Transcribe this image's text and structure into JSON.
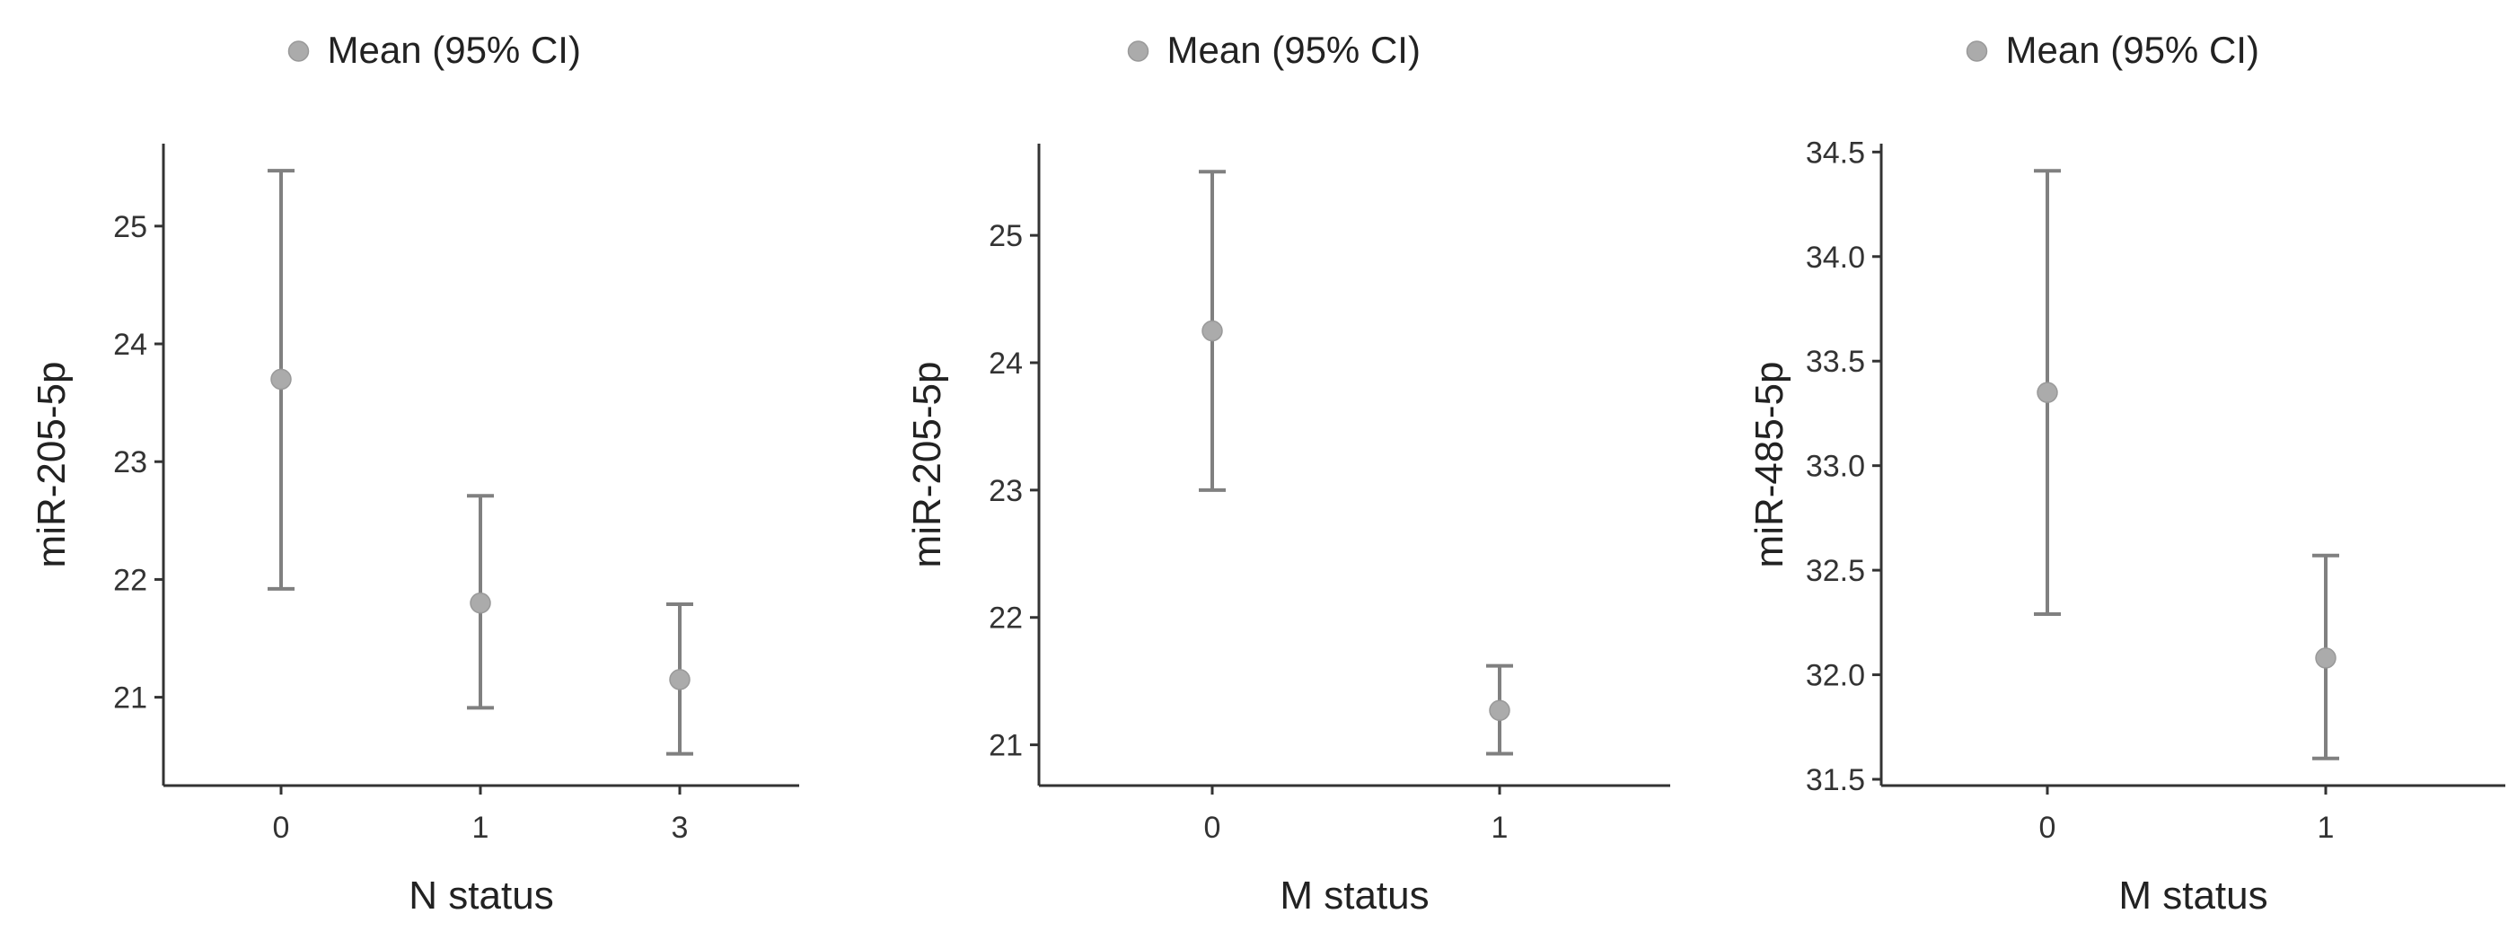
{
  "chart_data": [
    {
      "type": "errorbar",
      "legend": {
        "label": "Mean (95% CI)",
        "position": "top"
      },
      "xlabel": "N status",
      "ylabel": "miR-205-5p",
      "categories": [
        "0",
        "1",
        "3"
      ],
      "series": [
        {
          "points": [
            {
              "x": "0",
              "mean": 23.7,
              "lower": 21.92,
              "upper": 25.47
            },
            {
              "x": "1",
              "mean": 21.8,
              "lower": 20.91,
              "upper": 22.71
            },
            {
              "x": "3",
              "mean": 21.15,
              "lower": 20.52,
              "upper": 21.79
            }
          ]
        }
      ],
      "ylim": [
        20.25,
        25.7
      ],
      "yticks": [
        "21",
        "22",
        "23",
        "24",
        "25"
      ],
      "grid": false
    },
    {
      "type": "errorbar",
      "legend": {
        "label": "Mean (95% CI)",
        "position": "top"
      },
      "xlabel": "M status",
      "ylabel": "miR-205-5p",
      "categories": [
        "0",
        "1"
      ],
      "series": [
        {
          "points": [
            {
              "x": "0",
              "mean": 24.25,
              "lower": 23.0,
              "upper": 25.5
            },
            {
              "x": "1",
              "mean": 21.27,
              "lower": 20.93,
              "upper": 21.62
            }
          ]
        }
      ],
      "ylim": [
        20.68,
        25.72
      ],
      "yticks": [
        "21",
        "22",
        "23",
        "24",
        "25"
      ],
      "grid": false
    },
    {
      "type": "errorbar",
      "legend": {
        "label": "Mean (95% CI)",
        "position": "top"
      },
      "xlabel": "M status",
      "ylabel": "miR-485-5p",
      "categories": [
        "0",
        "1"
      ],
      "series": [
        {
          "points": [
            {
              "x": "0",
              "mean": 33.35,
              "lower": 32.29,
              "upper": 34.41
            },
            {
              "x": "1",
              "mean": 32.08,
              "lower": 31.6,
              "upper": 32.57
            }
          ]
        }
      ],
      "ylim": [
        31.47,
        34.54
      ],
      "yticks": [
        "31.5",
        "32.0",
        "32.5",
        "33.0",
        "33.5",
        "34.0",
        "34.5"
      ],
      "grid": false
    }
  ],
  "colors": {
    "axis": "#333333",
    "marker": "#ababab",
    "errorbar": "#808080",
    "text": "#333333"
  }
}
